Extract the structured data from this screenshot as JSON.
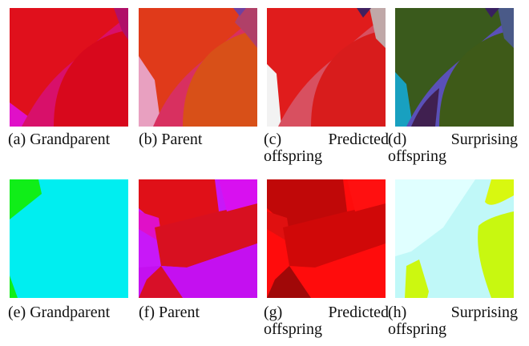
{
  "figure": {
    "rows": [
      {
        "panels": [
          {
            "caption": "(a) Grandparent"
          },
          {
            "caption": "(b) Parent"
          },
          {
            "caption_label": "(c)",
            "caption_word": "Predicted",
            "caption_line2": "offspring"
          },
          {
            "caption_label": "(d)",
            "caption_word": "Surprising",
            "caption_line2": "offspring"
          }
        ]
      },
      {
        "panels": [
          {
            "caption": "(e) Grandparent"
          },
          {
            "caption": "(f) Parent"
          },
          {
            "caption_label": "(g)",
            "caption_word": "Predicted",
            "caption_line2": "offspring"
          },
          {
            "caption_label": "(h)",
            "caption_word": "Surprising",
            "caption_line2": "offspring"
          }
        ]
      }
    ]
  }
}
